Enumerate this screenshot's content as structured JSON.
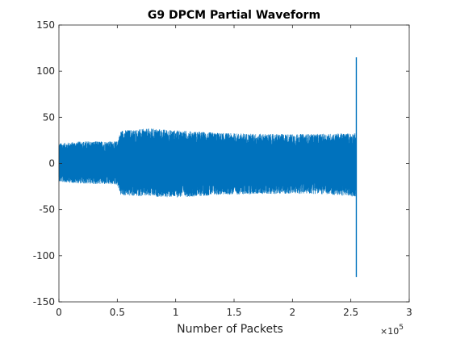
{
  "chart_data": {
    "type": "line",
    "title": "G9 DPCM Partial Waveform",
    "xlabel": "Number of Packets",
    "ylabel": "",
    "x_exponent_label": "×10",
    "x_exponent_power": "5",
    "xlim": [
      0,
      300000
    ],
    "ylim": [
      -150,
      150
    ],
    "xticks": [
      0,
      50000,
      100000,
      150000,
      200000,
      250000,
      300000
    ],
    "xtick_labels": [
      "0",
      "0.5",
      "1",
      "1.5",
      "2",
      "2.5",
      "3"
    ],
    "yticks": [
      -150,
      -100,
      -50,
      0,
      50,
      100,
      150
    ],
    "ytick_labels": [
      "-150",
      "-100",
      "-50",
      "0",
      "50",
      "100",
      "150"
    ],
    "grid": false,
    "line_color": "#0072BD",
    "series": [
      {
        "x_range": [
          0,
          256000
        ],
        "envelope": [
          {
            "x": 0,
            "low": -20,
            "high": 22
          },
          {
            "x": 20000,
            "low": -22,
            "high": 24
          },
          {
            "x": 50000,
            "low": -23,
            "high": 24
          },
          {
            "x": 53000,
            "low": -35,
            "high": 36
          },
          {
            "x": 80000,
            "low": -36,
            "high": 38
          },
          {
            "x": 100000,
            "low": -37,
            "high": 36
          },
          {
            "x": 140000,
            "low": -34,
            "high": 33
          },
          {
            "x": 180000,
            "low": -33,
            "high": 32
          },
          {
            "x": 220000,
            "low": -33,
            "high": 32
          },
          {
            "x": 254000,
            "low": -36,
            "high": 33
          }
        ],
        "spike": {
          "x": 254700,
          "max": 115,
          "min": -123
        }
      }
    ]
  }
}
